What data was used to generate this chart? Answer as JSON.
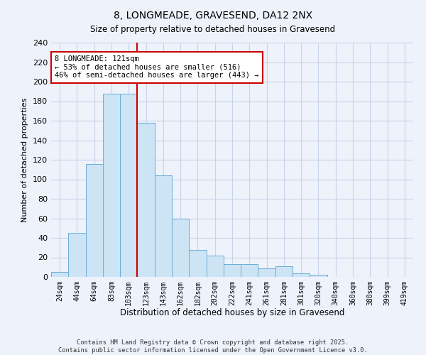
{
  "title": "8, LONGMEADE, GRAVESEND, DA12 2NX",
  "subtitle": "Size of property relative to detached houses in Gravesend",
  "xlabel": "Distribution of detached houses by size in Gravesend",
  "ylabel": "Number of detached properties",
  "bar_labels": [
    "24sqm",
    "44sqm",
    "64sqm",
    "83sqm",
    "103sqm",
    "123sqm",
    "143sqm",
    "162sqm",
    "182sqm",
    "202sqm",
    "222sqm",
    "241sqm",
    "261sqm",
    "281sqm",
    "301sqm",
    "320sqm",
    "340sqm",
    "360sqm",
    "380sqm",
    "399sqm",
    "419sqm"
  ],
  "bar_values": [
    5,
    45,
    116,
    188,
    188,
    158,
    104,
    60,
    28,
    22,
    13,
    13,
    9,
    11,
    4,
    2,
    0,
    0,
    0,
    0,
    0
  ],
  "bar_color": "#cde4f5",
  "bar_edge_color": "#6aaed6",
  "property_line_bar_index": 5,
  "annotation_title": "8 LONGMEADE: 121sqm",
  "annotation_line1": "← 53% of detached houses are smaller (516)",
  "annotation_line2": "46% of semi-detached houses are larger (443) →",
  "annotation_box_color": "white",
  "annotation_box_edge": "#cc0000",
  "line_color": "#cc0000",
  "ylim": [
    0,
    240
  ],
  "yticks": [
    0,
    20,
    40,
    60,
    80,
    100,
    120,
    140,
    160,
    180,
    200,
    220,
    240
  ],
  "footer_line1": "Contains HM Land Registry data © Crown copyright and database right 2025.",
  "footer_line2": "Contains public sector information licensed under the Open Government Licence v3.0.",
  "background_color": "#eef2fb",
  "grid_color": "#c8d4e8"
}
